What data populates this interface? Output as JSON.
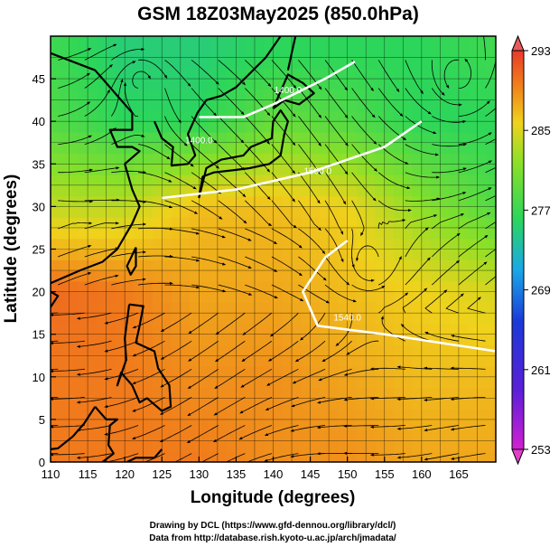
{
  "title": "GSM 18Z03May2025 (850.0hPa)",
  "xlabel": "Longitude (degrees)",
  "ylabel": "Latitude (degrees)",
  "x_ticks": [
    "110",
    "115",
    "120",
    "125",
    "130",
    "135",
    "140",
    "145",
    "150",
    "155",
    "160",
    "165"
  ],
  "y_ticks": [
    "0",
    "5",
    "10",
    "15",
    "20",
    "25",
    "30",
    "35",
    "40",
    "45"
  ],
  "colorbar": {
    "tick_labels": [
      "293",
      "285",
      "277",
      "269",
      "261",
      "253"
    ],
    "range": [
      253,
      293
    ]
  },
  "contour_labels": [
    "1400.0",
    "1400.0",
    "1500.0",
    "1540.0"
  ],
  "credits": {
    "line1": "Drawing by DCL (https://www.gfd-dennou.org/library/dcl/)",
    "line2": "Data from http://database.rish.kyoto-u.ac.jp/arch/jmadata/"
  },
  "chart_data": {
    "type": "heatmap",
    "title": "GSM 18Z03May2025 (850.0hPa)",
    "xlabel": "Longitude (degrees)",
    "ylabel": "Latitude (degrees)",
    "xlim": [
      110,
      170
    ],
    "ylim": [
      0,
      50
    ],
    "colorbar_range": [
      253,
      293
    ],
    "temperature_grid_approx": {
      "lat": [
        0,
        10,
        20,
        30,
        40,
        48
      ],
      "values": [
        [
          289,
          289,
          289,
          288,
          288,
          287,
          287
        ],
        [
          289,
          289,
          288,
          288,
          287,
          286,
          286
        ],
        [
          290,
          289,
          287,
          287,
          286,
          285,
          284
        ],
        [
          283,
          283,
          286,
          286,
          285,
          281,
          278
        ],
        [
          278,
          276,
          276,
          279,
          278,
          276,
          276
        ],
        [
          277,
          275,
          275,
          276,
          276,
          276,
          277
        ]
      ],
      "lon": [
        110,
        120,
        130,
        140,
        150,
        160,
        170
      ]
    },
    "contours": [
      {
        "label": "1400.0",
        "approx_path": [
          [
            130,
            40.5
          ],
          [
            136,
            40.5
          ],
          [
            140,
            42
          ],
          [
            147,
            45
          ],
          [
            151,
            47
          ]
        ]
      },
      {
        "label": "1500.0",
        "approx_path": [
          [
            125,
            31
          ],
          [
            135,
            32
          ],
          [
            145,
            34
          ],
          [
            155,
            37
          ],
          [
            160,
            40
          ]
        ]
      },
      {
        "label": "1540.0",
        "approx_path": [
          [
            150,
            26
          ],
          [
            147,
            24
          ],
          [
            144,
            20
          ],
          [
            146,
            16
          ],
          [
            155,
            15
          ],
          [
            170,
            13
          ]
        ]
      }
    ],
    "vortices_approx": [
      [
        165,
        45
      ],
      [
        153,
        23
      ]
    ]
  }
}
